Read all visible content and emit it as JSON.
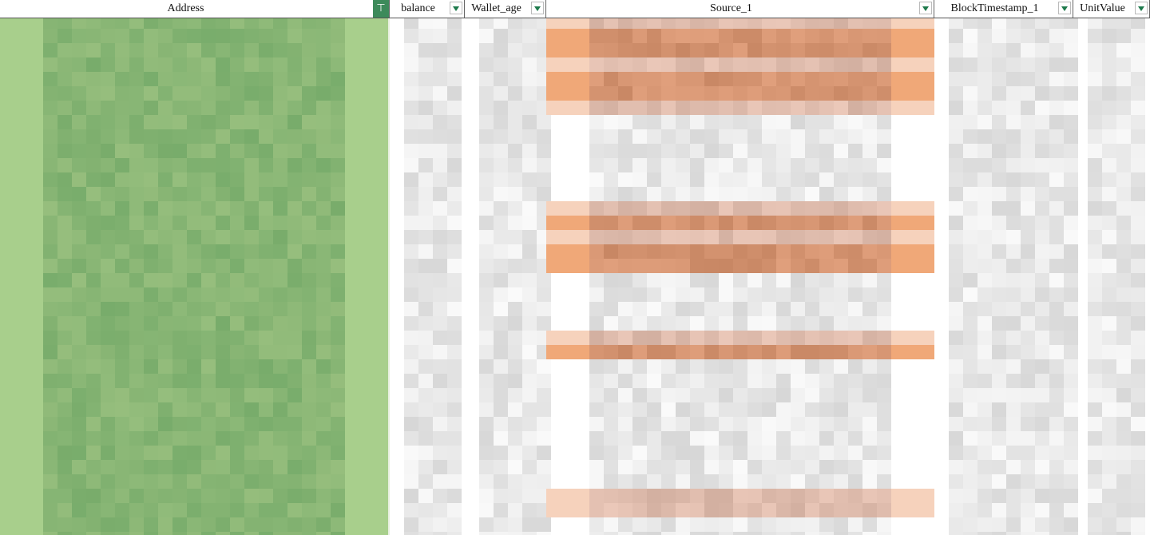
{
  "columns": [
    {
      "label": "Address",
      "filter_active": true
    },
    {
      "label": "balance",
      "filter_active": false
    },
    {
      "label": "Wallet_age",
      "filter_active": false
    },
    {
      "label": "Source_1",
      "filter_active": false
    },
    {
      "label": "BlockTimestamp_1",
      "filter_active": false
    },
    {
      "label": "UnitValue",
      "filter_active": false
    }
  ],
  "colors": {
    "address_fill": "#a8cf8c",
    "highlight": "#f0a878",
    "filter_button": "#3d8a5a"
  },
  "highlighted_rows": {
    "strong": [
      1,
      2,
      4,
      5,
      14,
      16,
      17,
      23
    ],
    "light": [
      0,
      3,
      6,
      13,
      15,
      22,
      33,
      34
    ]
  }
}
